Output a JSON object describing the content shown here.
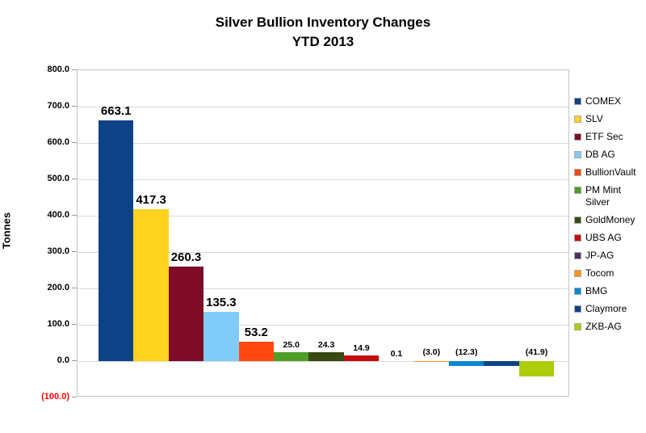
{
  "chart_data": {
    "type": "bar",
    "title": "Silver Bullion Inventory Changes",
    "subtitle": "YTD 2013",
    "ylabel": "Tonnes",
    "ylim": [
      -100,
      800
    ],
    "ytick_step": 100,
    "ytick_labels": [
      "800.0",
      "700.0",
      "600.0",
      "500.0",
      "400.0",
      "300.0",
      "200.0",
      "100.0",
      "0.0",
      "(100.0)"
    ],
    "ytick_values": [
      800,
      700,
      600,
      500,
      400,
      300,
      200,
      100,
      0,
      -100
    ],
    "grid": "horizontal",
    "legend_position": "right",
    "categories": [
      "COMEX",
      "SLV",
      "ETF Sec",
      "DB AG",
      "BullionVault",
      "PM Mint Silver",
      "GoldMoney",
      "UBS AG",
      "JP-AG",
      "Tocom",
      "BMG",
      "Claymore",
      "ZKB-AG"
    ],
    "values": [
      663.1,
      417.3,
      260.3,
      135.3,
      53.2,
      25.0,
      24.3,
      14.9,
      0.1,
      -3.0,
      -12.3,
      -14.4,
      -41.9
    ],
    "data_labels": [
      "663.1",
      "417.3",
      "260.3",
      "135.3",
      "53.2",
      "25.0",
      "24.3",
      "14.9",
      "0.1",
      "(3.0)",
      "(12.3)",
      "",
      "(41.9)"
    ],
    "colors": [
      "#0E4287",
      "#FFD320",
      "#7E0C26",
      "#81CBF8",
      "#FF470E",
      "#4E9D26",
      "#394A12",
      "#C30B10",
      "#483463",
      "#FF950E",
      "#0387D2",
      "#0E4287",
      "#AECC0A"
    ],
    "negative_tick_color": "#FF0000"
  }
}
